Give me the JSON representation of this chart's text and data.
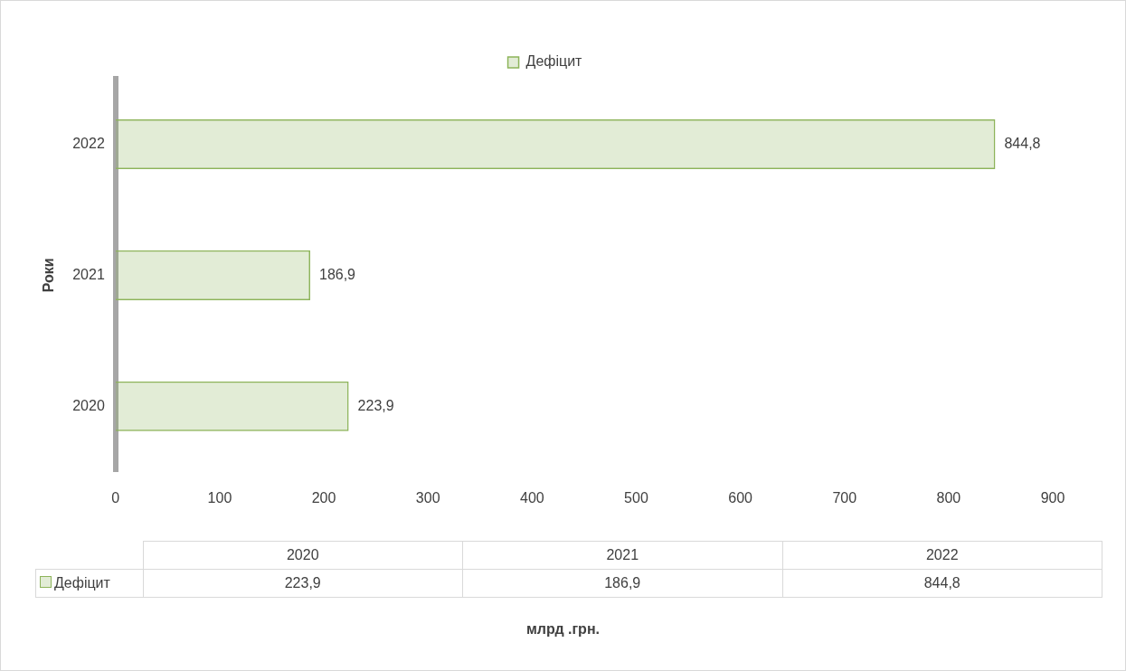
{
  "chart_data": {
    "type": "bar",
    "orientation": "horizontal",
    "categories": [
      "2022",
      "2021",
      "2020"
    ],
    "series": [
      {
        "name": "Дефіцит",
        "color": "#8db45a",
        "values": [
          844.8,
          186.9,
          223.9
        ],
        "value_labels": [
          "844,8",
          "186,9",
          "223,9"
        ]
      }
    ],
    "xlim": [
      0,
      900
    ],
    "xticks": [
      0,
      100,
      200,
      300,
      400,
      500,
      600,
      700,
      800,
      900
    ],
    "annotations": [
      "млрд .грн."
    ],
    "ylabel": "Роки",
    "legend": "top",
    "grid": false
  }
}
